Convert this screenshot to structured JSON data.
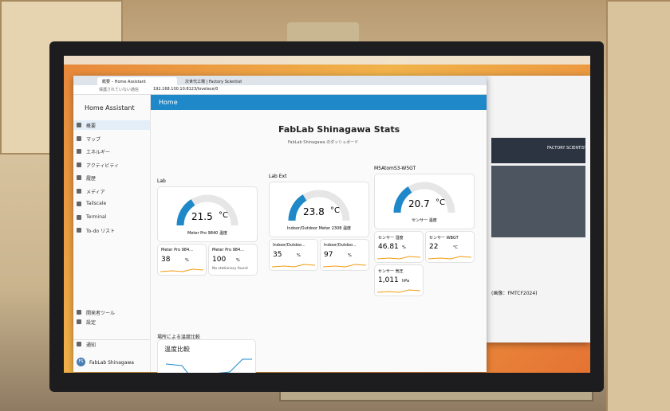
{
  "browser": {
    "tabs": [
      "概要 – Home Assistant",
      "次世代工場 | Factory Scientist"
    ],
    "security": "保護されていない通信",
    "url": "192.168.100.10:8123/lovelace/0"
  },
  "sidebar": {
    "title": "Home Assistant",
    "items": [
      "概要",
      "マップ",
      "エネルギー",
      "アクティビティ",
      "履歴",
      "メディア",
      "Tailscale",
      "Terminal",
      "To-do リスト"
    ],
    "bottom_items": [
      "開発者ツール",
      "設定",
      "通知"
    ],
    "user_initials": "FS",
    "user": "FabLab Shinagawa"
  },
  "header": {
    "title": "Home"
  },
  "dashboard": {
    "title": "FabLab Shinagawa Stats",
    "subtitle": "FabLab Shinagawa のダッシュボード",
    "sections": [
      {
        "title": "Lab",
        "gauge": {
          "value": 21.5,
          "unit": "°C",
          "name": "Meter Pro 9840 温度"
        },
        "tiles": [
          {
            "name": "Meter Pro 984...",
            "value": 38,
            "unit": "%"
          },
          {
            "name": "Meter Pro 984...",
            "value": 100,
            "unit": "%",
            "note": "No stationary found"
          }
        ]
      },
      {
        "title": "Lab Ext",
        "gauge": {
          "value": 23.8,
          "unit": "°C",
          "name": "Indoor/Outdoor Meter 2308 温度"
        },
        "tiles": [
          {
            "name": "Indoor/Outdoo...",
            "value": 35,
            "unit": "%"
          },
          {
            "name": "Indoor/Outdoo...",
            "value": 97,
            "unit": "%"
          }
        ]
      },
      {
        "title": "M5AtomS3-W5GT",
        "gauge": {
          "value": 20.7,
          "unit": "°C",
          "name": "センサー 温度"
        },
        "tiles": [
          {
            "name": "センサー 湿度",
            "value": 46.81,
            "unit": "%"
          },
          {
            "name": "センサー WBGT",
            "value": 22,
            "unit": "°C"
          },
          {
            "name": "センサー 気圧",
            "value": "1,011",
            "unit": "hPa"
          }
        ]
      }
    ],
    "compare": {
      "title": "場所による温度比較",
      "card_title": "温度比較"
    }
  },
  "document": {
    "caption": "(画像：FMTCF2024)",
    "logo": "FACTORY SCIENTIST"
  }
}
